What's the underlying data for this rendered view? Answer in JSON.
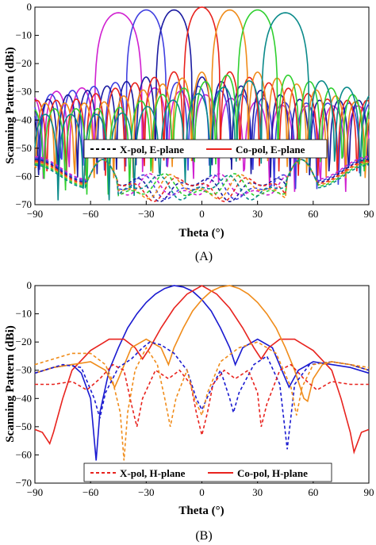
{
  "chart_data": [
    {
      "type": "line",
      "panel_label": "(A)",
      "xlabel": "Theta (°)",
      "ylabel": "Scanning Pattern (dBi)",
      "xlim": [
        -90,
        90
      ],
      "ylim": [
        -70,
        0
      ],
      "xticks": [
        "−90",
        "−60",
        "−30",
        "0",
        "30",
        "60",
        "90"
      ],
      "yticks": [
        "0",
        "−10",
        "−20",
        "−30",
        "−40",
        "−50",
        "−60",
        "−70"
      ],
      "legend": {
        "placement": "lower-center",
        "entries": [
          {
            "name": "X-pol, E-plane",
            "style": "dashed",
            "color": "#000000"
          },
          {
            "name": "Co-pol, E-plane",
            "style": "solid",
            "color": "#e8231e"
          }
        ]
      },
      "co_pol_beams": [
        {
          "color": "#d020d0",
          "peak_theta": -45,
          "peak_db": -2,
          "half_width": 13,
          "sidelobe_db": -28,
          "edge_db": -35
        },
        {
          "color": "#4040e0",
          "peak_theta": -30,
          "peak_db": -1,
          "half_width": 11,
          "sidelobe_db": -26,
          "edge_db": -34
        },
        {
          "color": "#1a1aa0",
          "peak_theta": -15,
          "peak_db": -1,
          "half_width": 10,
          "sidelobe_db": -24,
          "edge_db": -33
        },
        {
          "color": "#e8231e",
          "peak_theta": 0,
          "peak_db": 0,
          "half_width": 10,
          "sidelobe_db": -22,
          "edge_db": -33
        },
        {
          "color": "#f08c1a",
          "peak_theta": 15,
          "peak_db": -1,
          "half_width": 10,
          "sidelobe_db": -22,
          "edge_db": -34
        },
        {
          "color": "#30d030",
          "peak_theta": 30,
          "peak_db": -1,
          "half_width": 11,
          "sidelobe_db": -23,
          "edge_db": -36
        },
        {
          "color": "#0a8a8a",
          "peak_theta": 45,
          "peak_db": -2,
          "half_width": 13,
          "sidelobe_db": -25,
          "edge_db": -38
        }
      ],
      "x_pol_level_db": [
        -56,
        -64
      ]
    },
    {
      "type": "line",
      "panel_label": "(B)",
      "xlabel": "Theta (°)",
      "ylabel": "Scanning Pattern (dBi)",
      "xlim": [
        -90,
        90
      ],
      "ylim": [
        -70,
        0
      ],
      "xticks": [
        "−90",
        "−60",
        "−30",
        "0",
        "30",
        "60",
        "90"
      ],
      "yticks": [
        "0",
        "−10",
        "−20",
        "−30",
        "−40",
        "−50",
        "−60",
        "−70"
      ],
      "legend": {
        "placement": "lower-center",
        "entries": [
          {
            "name": "X-pol, H-plane",
            "style": "dashed",
            "color": "#e8231e"
          },
          {
            "name": "Co-pol, H-plane",
            "style": "solid",
            "color": "#e8231e"
          }
        ]
      },
      "co_pol_series": [
        {
          "color": "#1a1ad0",
          "points": [
            [
              -90,
              -31
            ],
            [
              -80,
              -29
            ],
            [
              -70,
              -28
            ],
            [
              -65,
              -31
            ],
            [
              -60,
              -40
            ],
            [
              -57,
              -62
            ],
            [
              -55,
              -45
            ],
            [
              -50,
              -30
            ],
            [
              -45,
              -22
            ],
            [
              -40,
              -15
            ],
            [
              -35,
              -10
            ],
            [
              -30,
              -6
            ],
            [
              -25,
              -3
            ],
            [
              -20,
              -1
            ],
            [
              -15,
              0
            ],
            [
              -10,
              -0.5
            ],
            [
              -5,
              -2
            ],
            [
              0,
              -5
            ],
            [
              5,
              -9
            ],
            [
              10,
              -15
            ],
            [
              15,
              -22
            ],
            [
              18,
              -28
            ],
            [
              22,
              -22
            ],
            [
              30,
              -19
            ],
            [
              38,
              -22
            ],
            [
              45,
              -33
            ],
            [
              47,
              -36
            ],
            [
              52,
              -30
            ],
            [
              60,
              -27
            ],
            [
              70,
              -28
            ],
            [
              80,
              -29
            ],
            [
              90,
              -31
            ]
          ]
        },
        {
          "color": "#e8231e",
          "points": [
            [
              -90,
              -51
            ],
            [
              -86,
              -52
            ],
            [
              -82,
              -56
            ],
            [
              -80,
              -52
            ],
            [
              -75,
              -40
            ],
            [
              -70,
              -30
            ],
            [
              -60,
              -23
            ],
            [
              -50,
              -19
            ],
            [
              -42,
              -19
            ],
            [
              -36,
              -22
            ],
            [
              -32,
              -26
            ],
            [
              -28,
              -22
            ],
            [
              -22,
              -15
            ],
            [
              -15,
              -8
            ],
            [
              -8,
              -3
            ],
            [
              0,
              0
            ],
            [
              8,
              -3
            ],
            [
              15,
              -8
            ],
            [
              22,
              -15
            ],
            [
              28,
              -22
            ],
            [
              32,
              -26
            ],
            [
              36,
              -22
            ],
            [
              42,
              -19
            ],
            [
              50,
              -19
            ],
            [
              60,
              -23
            ],
            [
              70,
              -30
            ],
            [
              75,
              -40
            ],
            [
              80,
              -52
            ],
            [
              82,
              -59
            ],
            [
              86,
              -52
            ],
            [
              90,
              -51
            ]
          ]
        },
        {
          "color": "#f08c1a",
          "points": [
            [
              -90,
              -31
            ],
            [
              -80,
              -29
            ],
            [
              -70,
              -28
            ],
            [
              -60,
              -27
            ],
            [
              -52,
              -30
            ],
            [
              -47,
              -36
            ],
            [
              -45,
              -33
            ],
            [
              -38,
              -22
            ],
            [
              -30,
              -19
            ],
            [
              -22,
              -22
            ],
            [
              -18,
              -28
            ],
            [
              -15,
              -22
            ],
            [
              -10,
              -15
            ],
            [
              -5,
              -9
            ],
            [
              0,
              -5
            ],
            [
              5,
              -2
            ],
            [
              10,
              -0.5
            ],
            [
              15,
              0
            ],
            [
              20,
              -1
            ],
            [
              25,
              -3
            ],
            [
              30,
              -6
            ],
            [
              35,
              -10
            ],
            [
              40,
              -15
            ],
            [
              45,
              -22
            ],
            [
              50,
              -30
            ],
            [
              55,
              -40
            ],
            [
              57,
              -41
            ],
            [
              60,
              -33
            ],
            [
              65,
              -28
            ],
            [
              70,
              -27
            ],
            [
              80,
              -28
            ],
            [
              90,
              -30
            ]
          ]
        }
      ],
      "x_pol_series": [
        {
          "color": "#1a1ad0",
          "points": [
            [
              -90,
              -31
            ],
            [
              -75,
              -28
            ],
            [
              -65,
              -29
            ],
            [
              -58,
              -40
            ],
            [
              -55,
              -47
            ],
            [
              -52,
              -38
            ],
            [
              -45,
              -29
            ],
            [
              -38,
              -26
            ],
            [
              -32,
              -22
            ],
            [
              -28,
              -20
            ],
            [
              -22,
              -21
            ],
            [
              -15,
              -24
            ],
            [
              -8,
              -30
            ],
            [
              -3,
              -40
            ],
            [
              0,
              -44
            ],
            [
              4,
              -38
            ],
            [
              10,
              -30
            ],
            [
              15,
              -40
            ],
            [
              17,
              -45
            ],
            [
              20,
              -38
            ],
            [
              28,
              -28
            ],
            [
              35,
              -25
            ],
            [
              42,
              -35
            ],
            [
              46,
              -58
            ],
            [
              50,
              -35
            ],
            [
              58,
              -28
            ],
            [
              70,
              -27
            ],
            [
              80,
              -28
            ],
            [
              90,
              -30
            ]
          ]
        },
        {
          "color": "#e8231e",
          "points": [
            [
              -90,
              -35
            ],
            [
              -80,
              -35
            ],
            [
              -70,
              -34
            ],
            [
              -62,
              -37
            ],
            [
              -55,
              -33
            ],
            [
              -48,
              -28
            ],
            [
              -42,
              -30
            ],
            [
              -38,
              -42
            ],
            [
              -35,
              -50
            ],
            [
              -32,
              -40
            ],
            [
              -25,
              -30
            ],
            [
              -18,
              -33
            ],
            [
              -12,
              -30
            ],
            [
              -6,
              -35
            ],
            [
              -3,
              -45
            ],
            [
              0,
              -53
            ],
            [
              3,
              -45
            ],
            [
              6,
              -35
            ],
            [
              12,
              -30
            ],
            [
              18,
              -33
            ],
            [
              25,
              -30
            ],
            [
              30,
              -38
            ],
            [
              32,
              -50
            ],
            [
              35,
              -42
            ],
            [
              42,
              -30
            ],
            [
              48,
              -28
            ],
            [
              55,
              -33
            ],
            [
              62,
              -37
            ],
            [
              70,
              -34
            ],
            [
              80,
              -35
            ],
            [
              90,
              -35
            ]
          ]
        },
        {
          "color": "#f08c1a",
          "points": [
            [
              -90,
              -28
            ],
            [
              -80,
              -26
            ],
            [
              -70,
              -24
            ],
            [
              -60,
              -24
            ],
            [
              -52,
              -28
            ],
            [
              -48,
              -34
            ],
            [
              -44,
              -45
            ],
            [
              -42,
              -62
            ],
            [
              -40,
              -45
            ],
            [
              -36,
              -30
            ],
            [
              -30,
              -22
            ],
            [
              -24,
              -28
            ],
            [
              -20,
              -40
            ],
            [
              -17,
              -50
            ],
            [
              -14,
              -40
            ],
            [
              -8,
              -30
            ],
            [
              -4,
              -40
            ],
            [
              0,
              -46
            ],
            [
              3,
              -38
            ],
            [
              10,
              -27
            ],
            [
              20,
              -22
            ],
            [
              30,
              -20
            ],
            [
              40,
              -24
            ],
            [
              48,
              -36
            ],
            [
              51,
              -46
            ],
            [
              54,
              -36
            ],
            [
              60,
              -28
            ],
            [
              70,
              -27
            ],
            [
              80,
              -28
            ],
            [
              90,
              -29
            ]
          ]
        }
      ]
    }
  ]
}
